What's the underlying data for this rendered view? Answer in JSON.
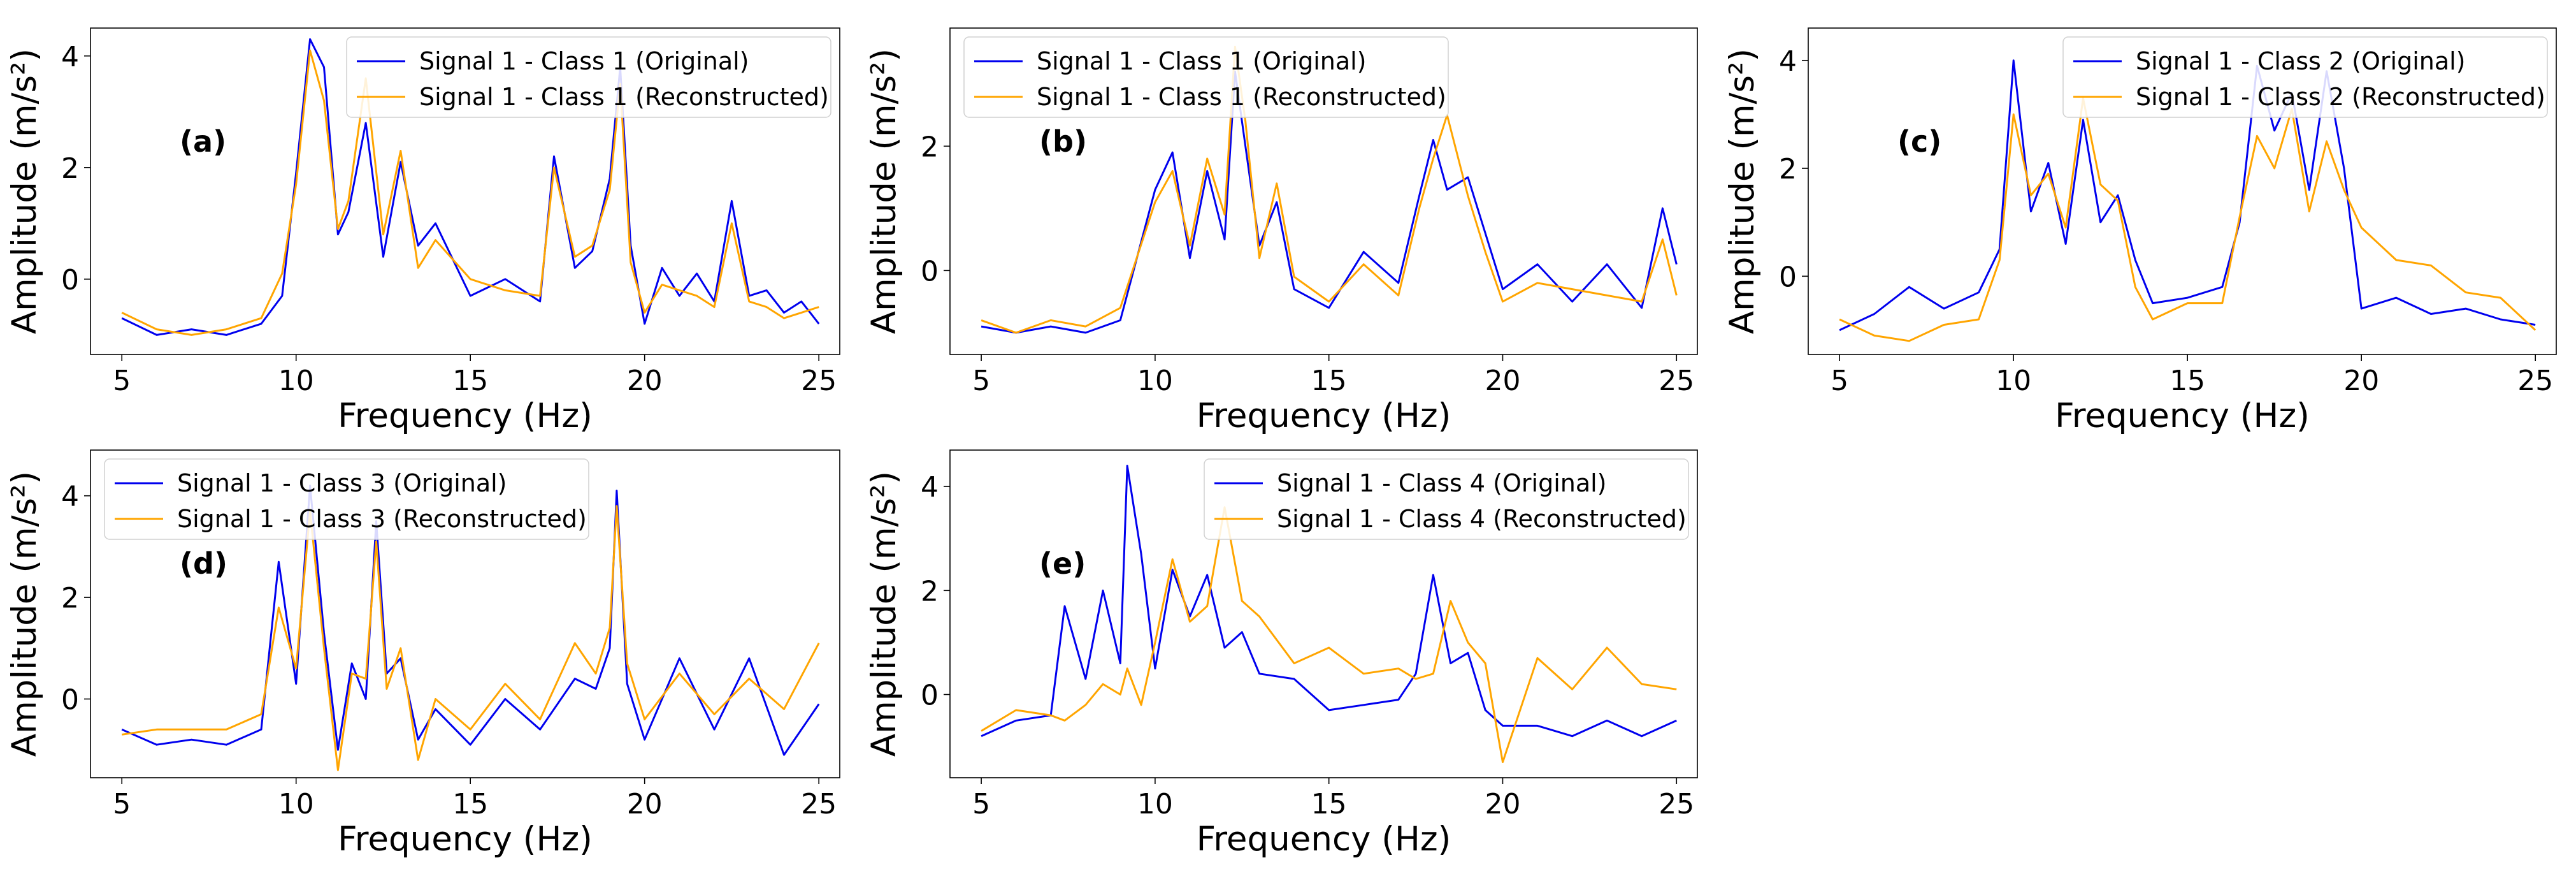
{
  "figure": {
    "colors": {
      "original": "#0000ee",
      "reconstructed": "#ffa500",
      "axis": "#000000",
      "background": "#ffffff"
    },
    "xlabel": "Frequency (Hz)",
    "ylabel": "Amplitude (m/s²)"
  },
  "chart_data": [
    {
      "type": "line",
      "panel_label": "(a)",
      "xlabel": "Frequency (Hz)",
      "ylabel": "Amplitude (m/s²)",
      "xlim": [
        4.1,
        25.6
      ],
      "ylim": [
        -1.35,
        4.5
      ],
      "xticks": [
        5,
        10,
        15,
        20,
        25
      ],
      "yticks": [
        0,
        2,
        4
      ],
      "legend_position": "upper-right",
      "series": [
        {
          "name": "Signal 1 - Class 1 (Original)",
          "color": "original",
          "x": [
            5.0,
            6.0,
            7.0,
            8.0,
            9.0,
            9.6,
            10.0,
            10.4,
            10.8,
            11.2,
            11.5,
            12.0,
            12.5,
            13.0,
            13.5,
            14.0,
            15.0,
            16.0,
            17.0,
            17.4,
            18.0,
            18.5,
            19.0,
            19.3,
            19.6,
            20.0,
            20.5,
            21.0,
            21.5,
            22.0,
            22.5,
            23.0,
            23.5,
            24.0,
            24.5,
            25.0
          ],
          "y": [
            -0.7,
            -1.0,
            -0.9,
            -1.0,
            -0.8,
            -0.3,
            1.9,
            4.3,
            3.8,
            0.8,
            1.2,
            2.8,
            0.4,
            2.1,
            0.6,
            1.0,
            -0.3,
            0.0,
            -0.4,
            2.2,
            0.2,
            0.5,
            1.8,
            3.8,
            0.6,
            -0.8,
            0.2,
            -0.3,
            0.1,
            -0.4,
            1.4,
            -0.3,
            -0.2,
            -0.6,
            -0.4,
            -0.8
          ]
        },
        {
          "name": "Signal 1 - Class 1 (Reconstructed)",
          "color": "reconstructed",
          "x": [
            5.0,
            6.0,
            7.0,
            8.0,
            9.0,
            9.6,
            10.0,
            10.4,
            10.8,
            11.2,
            11.5,
            12.0,
            12.5,
            13.0,
            13.5,
            14.0,
            15.0,
            16.0,
            17.0,
            17.4,
            18.0,
            18.5,
            19.0,
            19.3,
            19.6,
            20.0,
            20.5,
            21.0,
            21.5,
            22.0,
            22.5,
            23.0,
            23.5,
            24.0,
            24.5,
            25.0
          ],
          "y": [
            -0.6,
            -0.9,
            -1.0,
            -0.9,
            -0.7,
            0.1,
            1.7,
            4.1,
            3.2,
            0.9,
            1.4,
            3.6,
            0.8,
            2.3,
            0.2,
            0.7,
            0.0,
            -0.2,
            -0.3,
            2.0,
            0.4,
            0.6,
            1.6,
            3.5,
            0.3,
            -0.6,
            -0.1,
            -0.2,
            -0.3,
            -0.5,
            1.0,
            -0.4,
            -0.5,
            -0.7,
            -0.6,
            -0.5
          ]
        }
      ]
    },
    {
      "type": "line",
      "panel_label": "(b)",
      "xlabel": "Frequency (Hz)",
      "ylabel": "Amplitude (m/s²)",
      "xlim": [
        4.1,
        25.6
      ],
      "ylim": [
        -1.35,
        3.9
      ],
      "xticks": [
        5,
        10,
        15,
        20,
        25
      ],
      "yticks": [
        0,
        2
      ],
      "legend_position": "upper-left",
      "series": [
        {
          "name": "Signal 1 - Class 1 (Original)",
          "color": "original",
          "x": [
            5.0,
            6.0,
            7.0,
            8.0,
            9.0,
            10.0,
            10.5,
            11.0,
            11.5,
            12.0,
            12.3,
            12.6,
            13.0,
            13.5,
            14.0,
            15.0,
            16.0,
            17.0,
            17.6,
            18.0,
            18.4,
            19.0,
            19.5,
            20.0,
            21.0,
            22.0,
            23.0,
            24.0,
            24.6,
            25.0
          ],
          "y": [
            -0.9,
            -1.0,
            -0.9,
            -1.0,
            -0.8,
            1.3,
            1.9,
            0.2,
            1.6,
            0.5,
            3.2,
            2.0,
            0.4,
            1.1,
            -0.3,
            -0.6,
            0.3,
            -0.2,
            1.2,
            2.1,
            1.3,
            1.5,
            0.6,
            -0.3,
            0.1,
            -0.5,
            0.1,
            -0.6,
            1.0,
            0.1
          ]
        },
        {
          "name": "Signal 1 - Class 1 (Reconstructed)",
          "color": "reconstructed",
          "x": [
            5.0,
            6.0,
            7.0,
            8.0,
            9.0,
            10.0,
            10.5,
            11.0,
            11.5,
            12.0,
            12.3,
            12.6,
            13.0,
            13.5,
            14.0,
            15.0,
            16.0,
            17.0,
            17.6,
            18.0,
            18.4,
            19.0,
            19.5,
            20.0,
            21.0,
            22.0,
            23.0,
            24.0,
            24.6,
            25.0
          ],
          "y": [
            -0.8,
            -1.0,
            -0.8,
            -0.9,
            -0.6,
            1.1,
            1.6,
            0.4,
            1.8,
            0.9,
            3.6,
            2.4,
            0.2,
            1.4,
            -0.1,
            -0.5,
            0.1,
            -0.4,
            1.0,
            1.8,
            2.5,
            1.2,
            0.3,
            -0.5,
            -0.2,
            -0.3,
            -0.4,
            -0.5,
            0.5,
            -0.4
          ]
        }
      ]
    },
    {
      "type": "line",
      "panel_label": "(c)",
      "xlabel": "Frequency (Hz)",
      "ylabel": "Amplitude (m/s²)",
      "xlim": [
        4.1,
        25.6
      ],
      "ylim": [
        -1.45,
        4.6
      ],
      "xticks": [
        5,
        10,
        15,
        20,
        25
      ],
      "yticks": [
        0,
        2,
        4
      ],
      "legend_position": "upper-right",
      "series": [
        {
          "name": "Signal 1 - Class 2 (Original)",
          "color": "original",
          "x": [
            5.0,
            6.0,
            7.0,
            8.0,
            9.0,
            9.6,
            10.0,
            10.5,
            11.0,
            11.5,
            12.0,
            12.5,
            13.0,
            13.5,
            14.0,
            15.0,
            16.0,
            16.5,
            17.0,
            17.5,
            18.0,
            18.5,
            19.0,
            19.5,
            20.0,
            21.0,
            22.0,
            23.0,
            24.0,
            25.0
          ],
          "y": [
            -1.0,
            -0.7,
            -0.2,
            -0.6,
            -0.3,
            0.5,
            4.0,
            1.2,
            2.1,
            0.6,
            2.9,
            1.0,
            1.5,
            0.3,
            -0.5,
            -0.4,
            -0.2,
            1.0,
            3.9,
            2.7,
            3.4,
            1.6,
            3.8,
            2.0,
            -0.6,
            -0.4,
            -0.7,
            -0.6,
            -0.8,
            -0.9
          ]
        },
        {
          "name": "Signal 1 - Class 2 (Reconstructed)",
          "color": "reconstructed",
          "x": [
            5.0,
            6.0,
            7.0,
            8.0,
            9.0,
            9.6,
            10.0,
            10.5,
            11.0,
            11.5,
            12.0,
            12.5,
            13.0,
            13.5,
            14.0,
            15.0,
            16.0,
            16.5,
            17.0,
            17.5,
            18.0,
            18.5,
            19.0,
            19.5,
            20.0,
            21.0,
            22.0,
            23.0,
            24.0,
            25.0
          ],
          "y": [
            -0.8,
            -1.1,
            -1.2,
            -0.9,
            -0.8,
            0.3,
            3.0,
            1.5,
            1.9,
            0.9,
            3.3,
            1.7,
            1.4,
            -0.2,
            -0.8,
            -0.5,
            -0.5,
            1.1,
            2.6,
            2.0,
            3.1,
            1.2,
            2.5,
            1.6,
            0.9,
            0.3,
            0.2,
            -0.3,
            -0.4,
            -1.0
          ]
        }
      ]
    },
    {
      "type": "line",
      "panel_label": "(d)",
      "xlabel": "Frequency (Hz)",
      "ylabel": "Amplitude (m/s²)",
      "xlim": [
        4.1,
        25.6
      ],
      "ylim": [
        -1.55,
        4.9
      ],
      "xticks": [
        5,
        10,
        15,
        20,
        25
      ],
      "yticks": [
        0,
        2,
        4
      ],
      "legend_position": "upper-left",
      "series": [
        {
          "name": "Signal 1 - Class 3 (Original)",
          "color": "original",
          "x": [
            5.0,
            6.0,
            7.0,
            8.0,
            9.0,
            9.5,
            10.0,
            10.4,
            10.8,
            11.2,
            11.6,
            12.0,
            12.3,
            12.6,
            13.0,
            13.5,
            14.0,
            15.0,
            16.0,
            17.0,
            18.0,
            18.6,
            19.0,
            19.2,
            19.5,
            20.0,
            21.0,
            22.0,
            23.0,
            24.0,
            25.0
          ],
          "y": [
            -0.6,
            -0.9,
            -0.8,
            -0.9,
            -0.6,
            2.7,
            0.3,
            4.2,
            1.3,
            -1.0,
            0.7,
            0.0,
            3.5,
            0.5,
            0.8,
            -0.8,
            -0.2,
            -0.9,
            0.0,
            -0.6,
            0.4,
            0.2,
            1.0,
            4.1,
            0.3,
            -0.8,
            0.8,
            -0.6,
            0.8,
            -1.1,
            -0.1
          ]
        },
        {
          "name": "Signal 1 - Class 3 (Reconstructed)",
          "color": "reconstructed",
          "x": [
            5.0,
            6.0,
            7.0,
            8.0,
            9.0,
            9.5,
            10.0,
            10.4,
            10.8,
            11.2,
            11.6,
            12.0,
            12.3,
            12.6,
            13.0,
            13.5,
            14.0,
            15.0,
            16.0,
            17.0,
            18.0,
            18.6,
            19.0,
            19.2,
            19.5,
            20.0,
            21.0,
            22.0,
            23.0,
            24.0,
            25.0
          ],
          "y": [
            -0.7,
            -0.6,
            -0.6,
            -0.6,
            -0.3,
            1.8,
            0.6,
            3.7,
            1.0,
            -1.4,
            0.5,
            0.4,
            3.1,
            0.2,
            1.0,
            -1.2,
            0.0,
            -0.6,
            0.3,
            -0.4,
            1.1,
            0.5,
            1.4,
            3.8,
            0.7,
            -0.4,
            0.5,
            -0.3,
            0.4,
            -0.2,
            1.1
          ]
        }
      ]
    },
    {
      "type": "line",
      "panel_label": "(e)",
      "xlabel": "Frequency (Hz)",
      "ylabel": "Amplitude (m/s²)",
      "xlim": [
        4.1,
        25.6
      ],
      "ylim": [
        -1.6,
        4.7
      ],
      "xticks": [
        5,
        10,
        15,
        20,
        25
      ],
      "yticks": [
        0,
        2,
        4
      ],
      "legend_position": "upper-right",
      "series": [
        {
          "name": "Signal 1 - Class 4 (Original)",
          "color": "original",
          "x": [
            5.0,
            6.0,
            7.0,
            7.4,
            8.0,
            8.5,
            9.0,
            9.2,
            9.6,
            10.0,
            10.5,
            11.0,
            11.5,
            12.0,
            12.5,
            13.0,
            14.0,
            15.0,
            16.0,
            17.0,
            17.5,
            18.0,
            18.5,
            19.0,
            19.5,
            20.0,
            21.0,
            22.0,
            23.0,
            24.0,
            25.0
          ],
          "y": [
            -0.8,
            -0.5,
            -0.4,
            1.7,
            0.3,
            2.0,
            0.6,
            4.4,
            2.7,
            0.5,
            2.4,
            1.5,
            2.3,
            0.9,
            1.2,
            0.4,
            0.3,
            -0.3,
            -0.2,
            -0.1,
            0.4,
            2.3,
            0.6,
            0.8,
            -0.3,
            -0.6,
            -0.6,
            -0.8,
            -0.5,
            -0.8,
            -0.5
          ]
        },
        {
          "name": "Signal 1 - Class 4 (Reconstructed)",
          "color": "reconstructed",
          "x": [
            5.0,
            6.0,
            7.0,
            7.4,
            8.0,
            8.5,
            9.0,
            9.2,
            9.6,
            10.0,
            10.5,
            11.0,
            11.5,
            12.0,
            12.5,
            13.0,
            14.0,
            15.0,
            16.0,
            17.0,
            17.5,
            18.0,
            18.5,
            19.0,
            19.5,
            20.0,
            21.0,
            22.0,
            23.0,
            24.0,
            25.0
          ],
          "y": [
            -0.7,
            -0.3,
            -0.4,
            -0.5,
            -0.2,
            0.2,
            0.0,
            0.5,
            -0.2,
            1.0,
            2.6,
            1.4,
            1.7,
            3.6,
            1.8,
            1.5,
            0.6,
            0.9,
            0.4,
            0.5,
            0.3,
            0.4,
            1.8,
            1.0,
            0.6,
            -1.3,
            0.7,
            0.1,
            0.9,
            0.2,
            0.1
          ]
        }
      ]
    }
  ]
}
